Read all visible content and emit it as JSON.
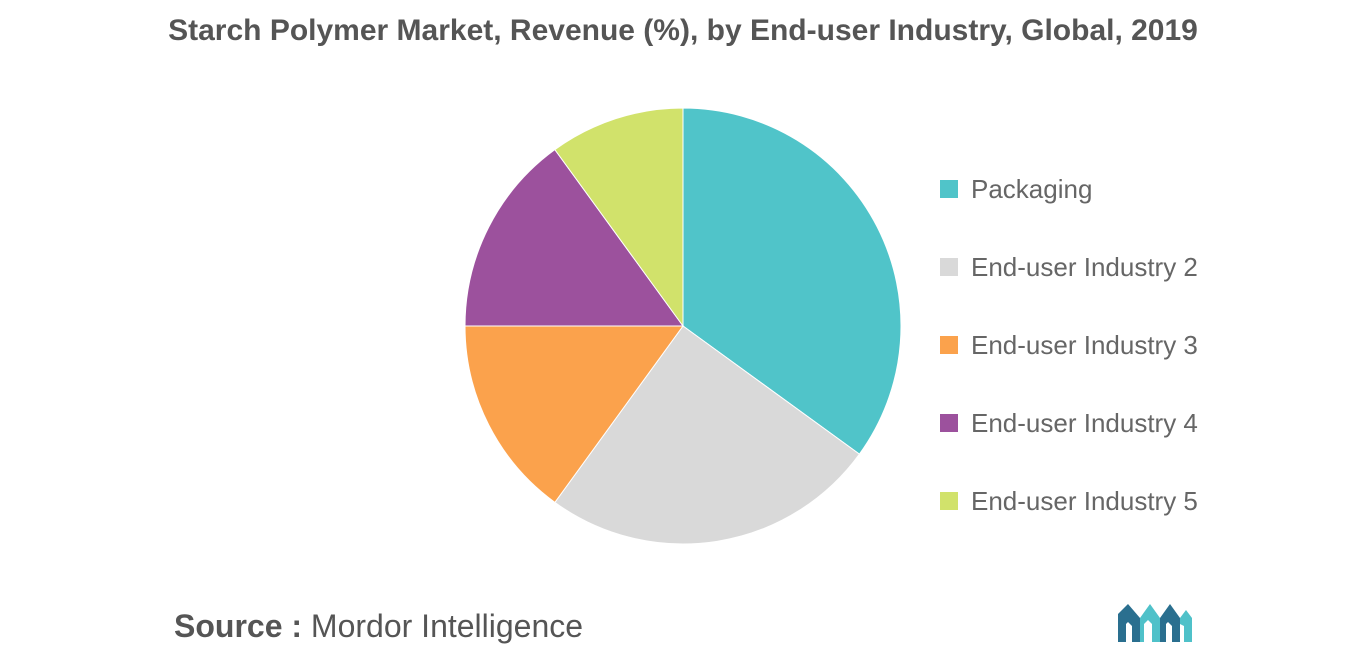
{
  "chart_data": {
    "type": "pie",
    "title": "Starch Polymer Market, Revenue (%), by End-user Industry, Global, 2019",
    "categories": [
      "Packaging",
      "End-user Industry 2",
      "End-user Industry 3",
      "End-user Industry 4",
      "End-user Industry 5"
    ],
    "values": [
      35,
      25,
      15,
      15,
      10
    ],
    "colors": [
      "#50c4c9",
      "#d9d9d9",
      "#fba24c",
      "#9c519d",
      "#d1e26b"
    ],
    "legend_position": "right"
  },
  "source": {
    "label": "Source :",
    "text": "Mordor Intelligence"
  },
  "logo": {
    "icon": "mordor-intelligence-logo",
    "colors": [
      "#2a6f8f",
      "#4fc1c9"
    ]
  }
}
